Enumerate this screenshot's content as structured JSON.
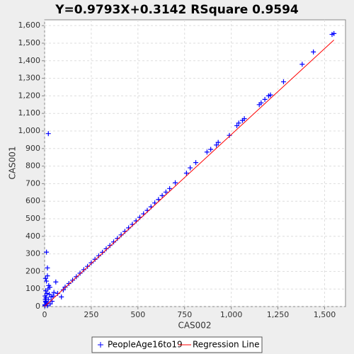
{
  "chart_data": {
    "type": "scatter",
    "title": "Y=0.9793X+0.3142    RSquare 0.9594",
    "x_label": "CAS002",
    "y_label": "CAS001",
    "xlim": [
      0,
      1612
    ],
    "ylim": [
      0,
      1633
    ],
    "xticks": [
      0,
      250,
      500,
      750,
      {
        "value": 1000,
        "label": "1,000"
      },
      {
        "value": 1250,
        "label": "1,250"
      },
      {
        "value": 1500,
        "label": "1,500"
      }
    ],
    "yticks": [
      0,
      100,
      200,
      300,
      400,
      500,
      600,
      700,
      800,
      900,
      {
        "value": 1000,
        "label": "1,000"
      },
      {
        "value": 1100,
        "label": "1,100"
      },
      {
        "value": 1200,
        "label": "1,200"
      },
      {
        "value": 1300,
        "label": "1,300"
      },
      {
        "value": 1400,
        "label": "1,400"
      },
      {
        "value": 1500,
        "label": "1,500"
      },
      {
        "value": 1600,
        "label": "1,600"
      }
    ],
    "grid": true,
    "series": [
      {
        "name": "PeopleAge16to19",
        "type": "scatter",
        "color": "#0000ff",
        "x": [
          2,
          5,
          8,
          3,
          10,
          15,
          20,
          25,
          30,
          35,
          40,
          45,
          12,
          6,
          18,
          28,
          22,
          10,
          5,
          15,
          15,
          10,
          20,
          60,
          90,
          50,
          70,
          100,
          2,
          4,
          7,
          110,
          130,
          150,
          170,
          190,
          210,
          230,
          250,
          270,
          290,
          310,
          330,
          350,
          370,
          390,
          410,
          430,
          450,
          470,
          490,
          510,
          530,
          550,
          570,
          590,
          610,
          630,
          650,
          670,
          700,
          760,
          780,
          810,
          870,
          890,
          920,
          930,
          990,
          1030,
          1040,
          1060,
          1070,
          1150,
          1160,
          1180,
          1200,
          1210,
          1280,
          1380,
          1440,
          1540,
          1550
        ],
        "values": [
          10,
          30,
          50,
          60,
          20,
          5,
          40,
          70,
          15,
          55,
          30,
          60,
          75,
          90,
          100,
          110,
          120,
          145,
          160,
          175,
          220,
          310,
          985,
          140,
          55,
          80,
          75,
          95,
          5,
          40,
          25,
          111,
          131,
          150,
          170,
          190,
          210,
          229,
          249,
          269,
          289,
          309,
          329,
          348,
          368,
          388,
          408,
          428,
          448,
          468,
          488,
          508,
          528,
          548,
          568,
          590,
          610,
          632,
          652,
          672,
          705,
          760,
          790,
          820,
          880,
          895,
          920,
          935,
          975,
          1030,
          1045,
          1060,
          1070,
          1150,
          1160,
          1180,
          1200,
          1205,
          1280,
          1380,
          1450,
          1550,
          1555
        ]
      },
      {
        "name": "Regression Line",
        "type": "line",
        "color": "#ff0000",
        "x": [
          0,
          1550
        ],
        "values": [
          0.3142,
          1518.23
        ]
      }
    ],
    "legend": "bottom"
  }
}
